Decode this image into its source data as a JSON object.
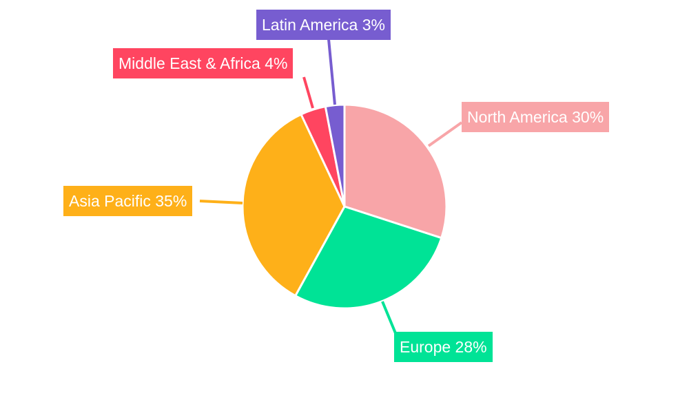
{
  "chart_data": {
    "type": "pie",
    "title": "",
    "categories": [
      "North America",
      "Europe",
      "Asia Pacific",
      "Middle East & Africa",
      "Latin America"
    ],
    "values": [
      30,
      28,
      35,
      4,
      3
    ],
    "colors": [
      "#f8a5a8",
      "#00e396",
      "#feb019",
      "#ff4560",
      "#775dd0"
    ],
    "labels": [
      "North America 30%",
      "Europe 28%",
      "Asia Pacific 35%",
      "Middle East & Africa 4%",
      "Latin America 3%"
    ],
    "start_angle": "12 o'clock, clockwise",
    "legend": "none (callout labels)"
  },
  "labels": {
    "north_america": "North America 30%",
    "europe": "Europe 28%",
    "asia_pacific": "Asia Pacific 35%",
    "mea": "Middle East & Africa 4%",
    "latam": "Latin America 3%"
  }
}
